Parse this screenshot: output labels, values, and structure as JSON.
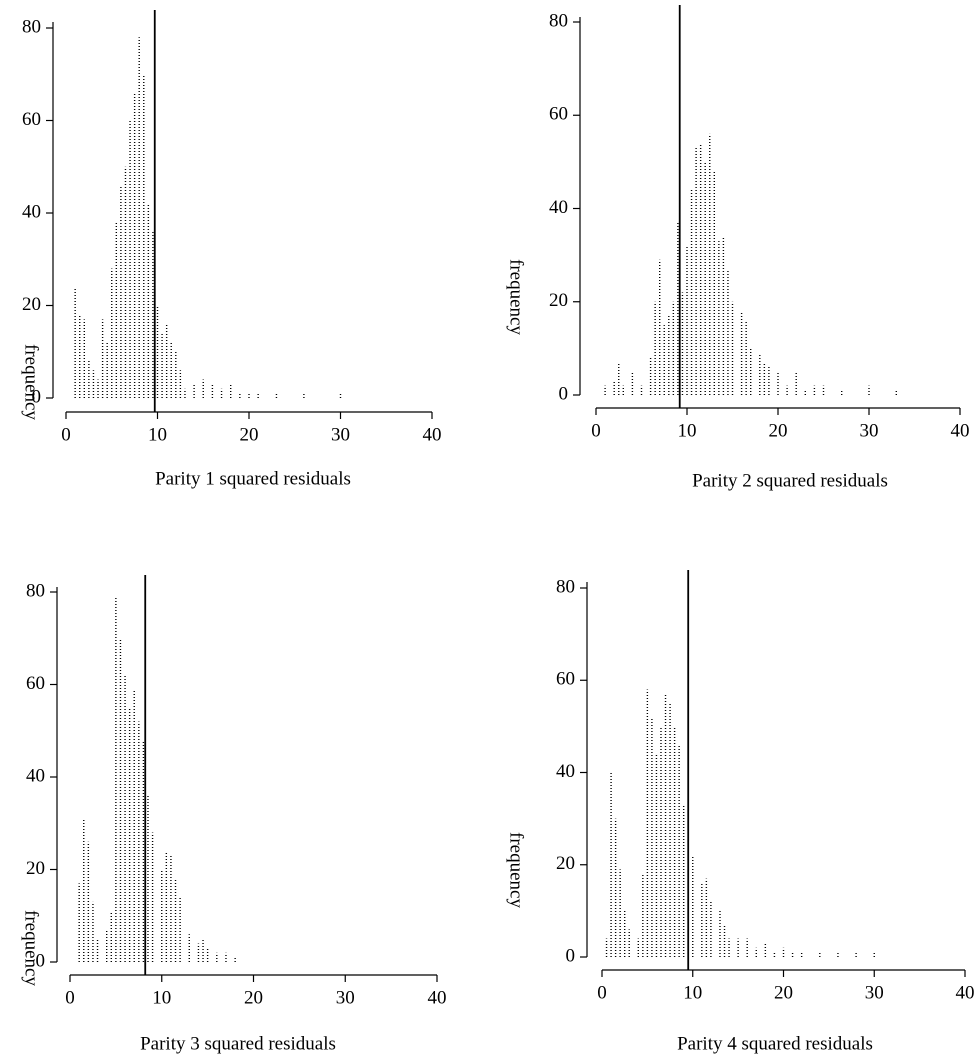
{
  "chart_data": [
    {
      "type": "spike",
      "xlabel": "Parity 1 squared residuals",
      "ylabel": "frequency",
      "color": "#000000",
      "vline": 9.7,
      "xlim": [
        0,
        40
      ],
      "ylim": [
        0,
        80
      ],
      "xticks": [
        0,
        10,
        20,
        30,
        40
      ],
      "yticks": [
        0,
        20,
        40,
        60,
        80
      ],
      "x": [
        1.0,
        1.5,
        2.0,
        2.5,
        3.0,
        3.5,
        4.0,
        4.5,
        5.0,
        5.5,
        6.0,
        6.5,
        7.0,
        7.5,
        8.0,
        8.5,
        9.0,
        9.5,
        10.0,
        10.5,
        11.0,
        11.5,
        12.0,
        12.5,
        13.0,
        14.0,
        15.0,
        16.0,
        17.0,
        18.0,
        19.0,
        20.0,
        21.0,
        23.0,
        26.0,
        30.0
      ],
      "values": [
        24,
        18,
        17,
        8,
        6,
        4,
        17,
        12,
        28,
        38,
        46,
        50,
        60,
        66,
        78,
        70,
        42,
        36,
        20,
        14,
        16,
        12,
        10,
        6,
        2,
        3,
        4,
        3,
        2,
        3,
        1,
        1,
        1,
        1,
        1,
        1
      ]
    },
    {
      "type": "spike",
      "xlabel": "Parity 2 squared residuals",
      "ylabel": "frequency",
      "color": "#000000",
      "vline": 9.2,
      "xlim": [
        0,
        40
      ],
      "ylim": [
        0,
        80
      ],
      "xticks": [
        0,
        10,
        20,
        30,
        40
      ],
      "yticks": [
        0,
        20,
        40,
        60,
        80
      ],
      "x": [
        1.0,
        2.0,
        2.5,
        3.0,
        4.0,
        5.0,
        6.0,
        6.5,
        7.0,
        7.5,
        8.0,
        8.5,
        9.0,
        9.5,
        10.0,
        10.5,
        11.0,
        11.5,
        12.0,
        12.5,
        13.0,
        13.5,
        14.0,
        14.5,
        15.0,
        16.0,
        16.5,
        17.0,
        18.0,
        18.5,
        19.0,
        20.0,
        21.0,
        22.0,
        23.0,
        24.0,
        25.0,
        27.0,
        30.0,
        33.0
      ],
      "values": [
        2,
        3,
        7,
        2,
        5,
        2,
        8,
        20,
        29,
        15,
        17,
        20,
        37,
        22,
        32,
        44,
        53,
        54,
        50,
        56,
        48,
        33,
        34,
        27,
        20,
        18,
        16,
        10,
        9,
        7,
        6,
        5,
        2,
        5,
        1,
        2,
        2,
        1,
        2,
        1
      ]
    },
    {
      "type": "spike",
      "xlabel": "Parity 3 squared residuals",
      "ylabel": "frequency",
      "color": "#000000",
      "vline": 8.2,
      "xlim": [
        0,
        40
      ],
      "ylim": [
        0,
        80
      ],
      "xticks": [
        0,
        10,
        20,
        30,
        40
      ],
      "yticks": [
        0,
        20,
        40,
        60,
        80
      ],
      "x": [
        1.0,
        1.5,
        2.0,
        2.5,
        3.0,
        4.0,
        4.5,
        5.0,
        5.5,
        6.0,
        6.5,
        7.0,
        7.5,
        8.0,
        8.5,
        9.0,
        10.0,
        10.5,
        11.0,
        11.5,
        12.0,
        13.0,
        14.0,
        14.5,
        15.0,
        16.0,
        17.0,
        18.0
      ],
      "values": [
        17,
        31,
        26,
        13,
        5,
        7,
        11,
        79,
        70,
        62,
        55,
        59,
        52,
        48,
        36,
        28,
        20,
        24,
        23,
        18,
        14,
        6,
        4,
        5,
        3,
        2,
        2,
        1
      ]
    },
    {
      "type": "spike",
      "xlabel": "Parity 4 squared residuals",
      "ylabel": "frequency",
      "color": "#000000",
      "vline": 9.5,
      "xlim": [
        0,
        40
      ],
      "ylim": [
        0,
        80
      ],
      "xticks": [
        0,
        10,
        20,
        30,
        40
      ],
      "yticks": [
        0,
        20,
        40,
        60,
        80
      ],
      "x": [
        0.5,
        1.0,
        1.5,
        2.0,
        2.5,
        3.0,
        4.0,
        4.5,
        5.0,
        5.5,
        6.0,
        6.5,
        7.0,
        7.5,
        8.0,
        8.5,
        9.0,
        9.5,
        10.0,
        11.0,
        11.5,
        12.0,
        13.0,
        13.5,
        14.0,
        15.0,
        16.0,
        17.0,
        18.0,
        19.0,
        20.0,
        21.0,
        22.0,
        24.0,
        26.0,
        28.0,
        30.0
      ],
      "values": [
        4,
        40,
        30,
        19,
        10,
        6,
        4,
        18,
        58,
        52,
        44,
        50,
        57,
        55,
        50,
        46,
        33,
        22,
        22,
        16,
        17,
        12,
        10,
        7,
        4,
        4,
        4,
        2,
        3,
        1,
        2,
        1,
        1,
        1,
        1,
        1,
        1
      ]
    }
  ]
}
